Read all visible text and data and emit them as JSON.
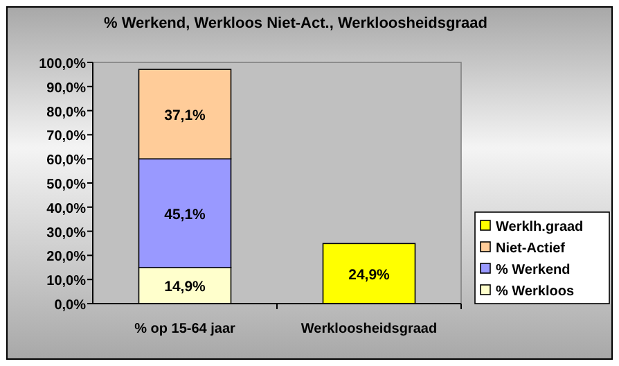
{
  "chart_data": {
    "type": "bar",
    "title": "% Werkend, Werkloos Niet-Act., Werkloosheidsgraad",
    "categories": [
      "% op 15-64 jaar",
      "Werkloosheidsgraad"
    ],
    "stacked": true,
    "legend": "right",
    "grid": false,
    "ylim": [
      0,
      100
    ],
    "yticks": [
      {
        "value": 0,
        "label": "0,0%"
      },
      {
        "value": 10,
        "label": "10,0%"
      },
      {
        "value": 20,
        "label": "20,0%"
      },
      {
        "value": 30,
        "label": "30,0%"
      },
      {
        "value": 40,
        "label": "40,0%"
      },
      {
        "value": 50,
        "label": "50,0%"
      },
      {
        "value": 60,
        "label": "60,0%"
      },
      {
        "value": 70,
        "label": "70,0%"
      },
      {
        "value": 80,
        "label": "80,0%"
      },
      {
        "value": 90,
        "label": "90,0%"
      },
      {
        "value": 100,
        "label": "100,0%"
      }
    ],
    "series": [
      {
        "name": "% Werkloos",
        "color": "#ffffcc",
        "values": [
          14.9,
          null
        ],
        "value_labels": [
          "14,9%",
          null
        ]
      },
      {
        "name": "% Werkend",
        "color": "#9999ff",
        "values": [
          45.1,
          null
        ],
        "value_labels": [
          "45,1%",
          null
        ]
      },
      {
        "name": "Niet-Actief",
        "color": "#ffcc99",
        "values": [
          37.1,
          null
        ],
        "value_labels": [
          "37,1%",
          null
        ]
      },
      {
        "name": "Werklh.graad",
        "color": "#ffff00",
        "values": [
          null,
          24.9
        ],
        "value_labels": [
          null,
          "24,9%"
        ]
      }
    ]
  }
}
